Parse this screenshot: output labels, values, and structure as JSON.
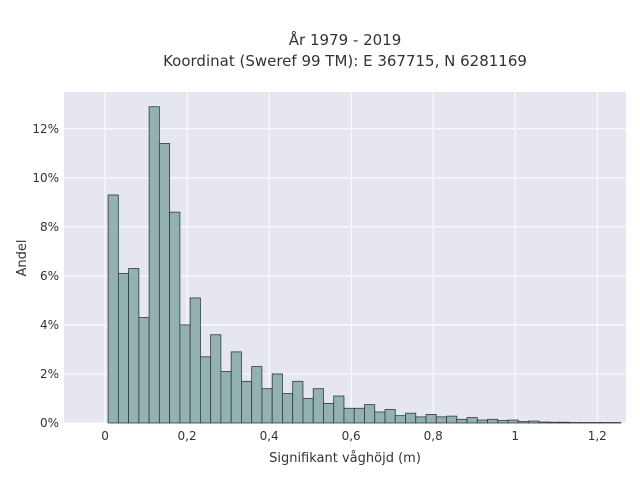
{
  "chart_data": {
    "type": "bar",
    "title_line1": "År 1979 - 2019",
    "title_line2": "Koordinat (Sweref 99 TM): E 367715, N 6281169",
    "xlabel": "Signifikant våghöjd (m)",
    "ylabel": "Andel",
    "xlim": [
      -0.1,
      1.27
    ],
    "ylim": [
      0,
      13.5
    ],
    "bin_width": 0.025,
    "bin_start": 0.0075,
    "values": [
      9.3,
      6.1,
      6.3,
      4.3,
      12.9,
      11.4,
      8.6,
      4.0,
      5.1,
      2.7,
      3.6,
      2.1,
      2.9,
      1.7,
      2.3,
      1.4,
      2.0,
      1.2,
      1.7,
      1.0,
      1.4,
      0.8,
      1.1,
      0.6,
      0.6,
      0.75,
      0.45,
      0.55,
      0.3,
      0.4,
      0.25,
      0.35,
      0.25,
      0.28,
      0.15,
      0.22,
      0.12,
      0.15,
      0.1,
      0.12,
      0.06,
      0.08,
      0.04,
      0.03,
      0.03,
      0.02,
      0.02,
      0.02,
      0.02,
      0.02
    ],
    "x_ticks": [
      {
        "value": 0,
        "label": "0"
      },
      {
        "value": 0.2,
        "label": "0,2"
      },
      {
        "value": 0.4,
        "label": "0,4"
      },
      {
        "value": 0.6,
        "label": "0,6"
      },
      {
        "value": 0.8,
        "label": "0,8"
      },
      {
        "value": 1.0,
        "label": "1"
      },
      {
        "value": 1.2,
        "label": "1,2"
      }
    ],
    "y_ticks": [
      {
        "value": 0,
        "label": "0%"
      },
      {
        "value": 2,
        "label": "2%"
      },
      {
        "value": 4,
        "label": "4%"
      },
      {
        "value": 6,
        "label": "6%"
      },
      {
        "value": 8,
        "label": "8%"
      },
      {
        "value": 10,
        "label": "10%"
      },
      {
        "value": 12,
        "label": "12%"
      }
    ],
    "grid": true,
    "colors": {
      "plot_bg": "#e5e6ef",
      "bar_fill": "#93b1b0",
      "bar_stroke": "#2f3b3b",
      "grid": "#ffffff"
    }
  }
}
